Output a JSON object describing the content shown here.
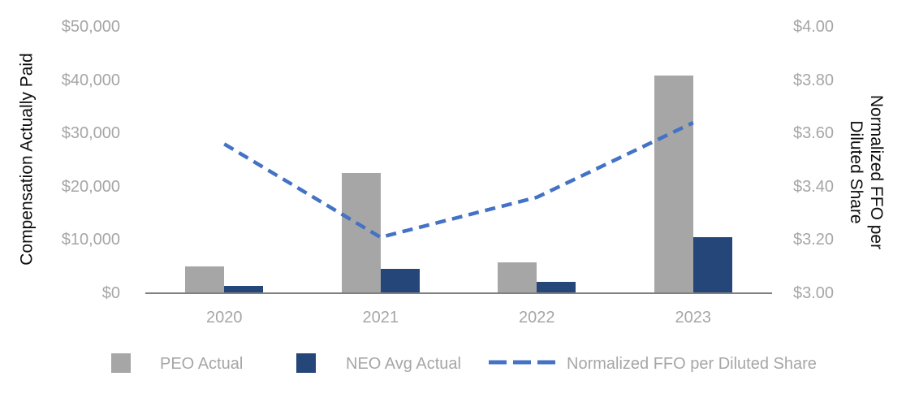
{
  "chart_data": {
    "type": "combo-bar-line",
    "title": "",
    "categories": [
      "2020",
      "2021",
      "2022",
      "2023"
    ],
    "series": [
      {
        "name": "PEO Actual",
        "type": "bar",
        "axis": "left",
        "color": "#a6a6a6",
        "values": [
          5100,
          22500,
          5800,
          40800
        ]
      },
      {
        "name": "NEO Avg Actual",
        "type": "bar",
        "axis": "left",
        "color": "#254679",
        "values": [
          1400,
          4500,
          2100,
          10500
        ]
      },
      {
        "name": "Normalized FFO per Diluted Share",
        "type": "line",
        "line_style": "dashed",
        "axis": "right",
        "color": "#4472c4",
        "values": [
          3.56,
          3.21,
          3.36,
          3.64
        ]
      }
    ],
    "left_axis": {
      "title": "Compensation Actually Paid",
      "min": 0,
      "max": 50000,
      "step": 10000,
      "tick_labels": [
        "$0",
        "$10,000",
        "$20,000",
        "$30,000",
        "$40,000",
        "$50,000"
      ]
    },
    "right_axis": {
      "title_line1": "Normalized FFO per",
      "title_line2": "Diluted Share",
      "min": 3.0,
      "max": 4.0,
      "step": 0.2,
      "tick_labels": [
        "$3.00",
        "$3.20",
        "$3.40",
        "$3.60",
        "$3.80",
        "$4.00"
      ]
    },
    "legend_position": "bottom",
    "grid": false,
    "colors": {
      "peo_bar": "#a6a6a6",
      "neo_bar": "#254679",
      "ffo_line": "#4472c4",
      "axis_line": "#808080",
      "tick_text": "#a6a6a6",
      "title_text": "#0d0d0d"
    }
  }
}
